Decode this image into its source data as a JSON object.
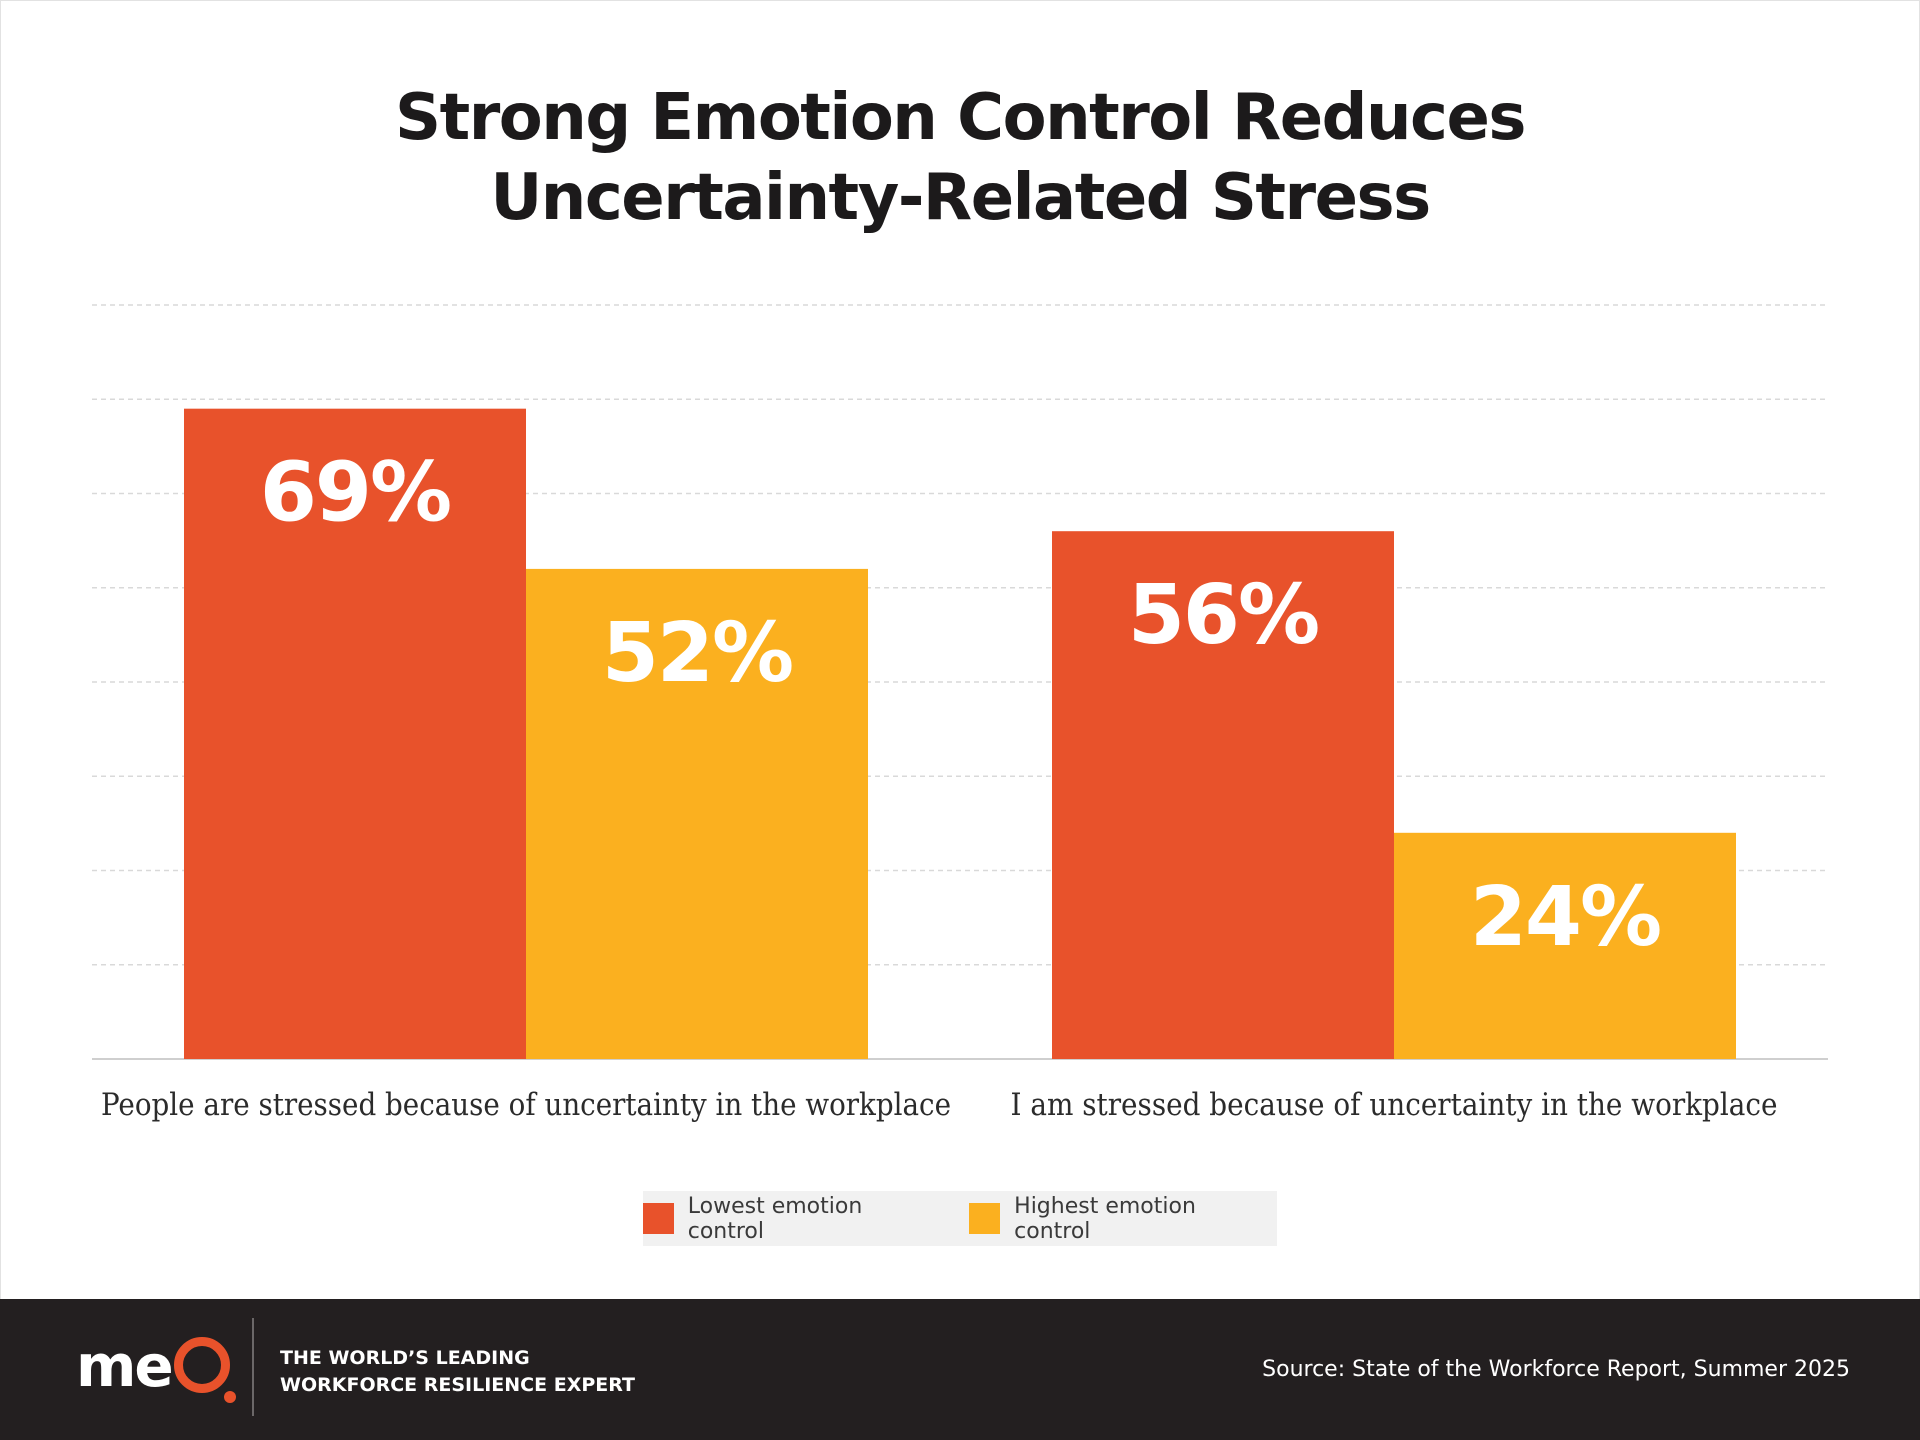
{
  "title_line1": "Strong Emotion Control Reduces",
  "title_line2": "Uncertainty-Related Stress",
  "chart_data": {
    "type": "bar",
    "categories": [
      "People are stressed because of uncertainty in the workplace",
      "I am stressed because of uncertainty in the workplace"
    ],
    "series": [
      {
        "name": "Lowest emotion control",
        "values": [
          69,
          56
        ],
        "color": "#e8522b"
      },
      {
        "name": "Highest emotion control",
        "values": [
          52,
          24
        ],
        "color": "#fbb01f"
      }
    ],
    "value_suffix": "%",
    "ylim": [
      0,
      80
    ],
    "grid": true,
    "legend_position": "bottom-center"
  },
  "footer": {
    "logo_text_me": "me",
    "tagline_line1": "THE WORLD’S LEADING",
    "tagline_line2": "WORKFORCE RESILIENCE EXPERT",
    "source": "Source: State of the Workforce Report, Summer 2025"
  }
}
